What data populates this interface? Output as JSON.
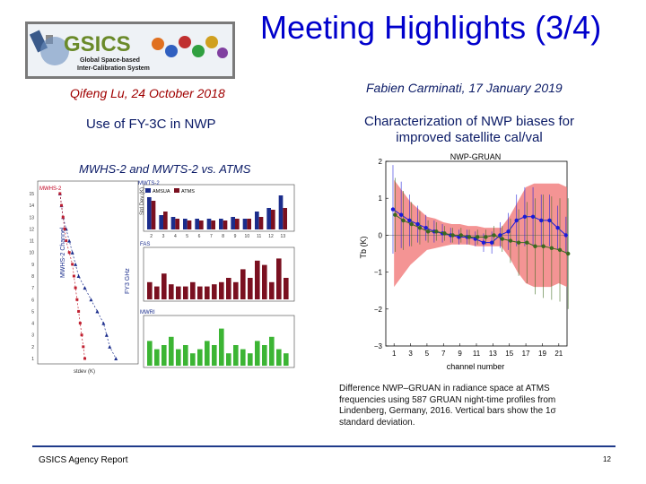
{
  "slide": {
    "title": "Meeting Highlights (3/4)",
    "left": {
      "author": "Qifeng Lu, 24 October 2018",
      "topic": "Use of FY-3C in NWP",
      "subtopic": "MWHS-2 and MWTS-2 vs. ATMS",
      "figure": {
        "top_label": "MWTS-2",
        "legend_items": [
          "AMSUA",
          "ATMS"
        ],
        "mid_label": "FAS",
        "bottom_label": "MWRI",
        "left_axis_label": "MWHS-2 Channel",
        "y_axis_label": "Std Dev (K)",
        "inner_axis_label": "FY3 GHz",
        "x_labels": [
          "2",
          "3",
          "4",
          "5",
          "6",
          "7",
          "8",
          "9",
          "10",
          "11",
          "12",
          "13"
        ],
        "profile_title": "MWHS-2",
        "profile_x_label": "stdev (K)"
      }
    },
    "right": {
      "author": "Fabien Carminati, 17 January 2019",
      "topic_line1": "Characterization of NWP biases for",
      "topic_line2": "improved satellite cal/val",
      "caption_lines": [
        "Difference NWP–GRUAN in radiance space at ATMS",
        "frequencies using 587 GRUAN night-time  profiles from",
        "Lindenberg,  Germany, 2016. Vertical bars show the 1σ",
        "standard deviation."
      ]
    },
    "footer": {
      "left": "GSICS Agency Report",
      "page": "12"
    },
    "logo": {
      "text": "GSICS",
      "subtitle_line1": "Global Space-based",
      "subtitle_line2": "Inter-Calibration System"
    }
  },
  "chart_data": {
    "type": "line",
    "title": "NWP-GRUAN",
    "xlabel": "channel number",
    "ylabel": "Tb (K)",
    "xlim": [
      0,
      22
    ],
    "ylim": [
      -3,
      2
    ],
    "xticks": [
      1,
      3,
      5,
      7,
      9,
      11,
      13,
      15,
      17,
      19,
      21
    ],
    "yticks": [
      -3,
      -2,
      -1,
      0,
      1,
      2
    ],
    "x": [
      1,
      2,
      3,
      4,
      5,
      6,
      7,
      8,
      9,
      10,
      11,
      12,
      13,
      14,
      15,
      16,
      17,
      18,
      19,
      20,
      21,
      22
    ],
    "series": [
      {
        "color": "#1a1adb",
        "values": [
          0.7,
          0.55,
          0.4,
          0.3,
          0.2,
          0.1,
          0.05,
          0.0,
          -0.05,
          -0.05,
          -0.1,
          -0.2,
          -0.2,
          0.0,
          0.1,
          0.4,
          0.5,
          0.5,
          0.4,
          0.4,
          0.2,
          0.0
        ]
      },
      {
        "color": "#3b6a1e",
        "values": [
          0.55,
          0.4,
          0.3,
          0.2,
          0.1,
          0.1,
          0.05,
          0.0,
          0.0,
          -0.05,
          -0.05,
          -0.05,
          0.0,
          -0.1,
          -0.15,
          -0.2,
          -0.2,
          -0.3,
          -0.3,
          -0.35,
          -0.4,
          -0.5
        ]
      }
    ],
    "band": {
      "color": "#f07070",
      "upper": [
        1.5,
        1.2,
        0.9,
        0.7,
        0.5,
        0.45,
        0.35,
        0.3,
        0.3,
        0.25,
        0.25,
        0.2,
        0.2,
        0.2,
        0.5,
        0.9,
        1.3,
        1.4,
        1.4,
        1.4,
        1.4,
        1.3
      ],
      "lower": [
        -1.4,
        -1.1,
        -0.8,
        -0.6,
        -0.4,
        -0.35,
        -0.3,
        -0.25,
        -0.25,
        -0.25,
        -0.3,
        -0.3,
        -0.3,
        -0.3,
        -0.6,
        -1.0,
        -1.3,
        -1.4,
        -1.4,
        -1.4,
        -1.3,
        -1.4
      ]
    },
    "error_bars": {
      "blue": [
        1.2,
        0.9,
        0.7,
        0.5,
        0.35,
        0.3,
        0.25,
        0.2,
        0.2,
        0.2,
        0.2,
        0.25,
        0.3,
        0.35,
        0.5,
        0.7,
        0.8,
        0.8,
        0.7,
        0.7,
        0.6,
        0.5
      ],
      "green": [
        1.0,
        0.8,
        0.6,
        0.45,
        0.3,
        0.25,
        0.2,
        0.2,
        0.2,
        0.2,
        0.2,
        0.2,
        0.25,
        0.35,
        0.6,
        0.9,
        1.1,
        1.3,
        1.4,
        1.4,
        1.4,
        1.5
      ]
    }
  },
  "left_chart_data": {
    "type": "bar",
    "panels": [
      {
        "label": "MWTS-2",
        "categories": [
          "2",
          "3",
          "4",
          "5",
          "6",
          "7",
          "8",
          "9",
          "10",
          "11",
          "12",
          "13"
        ],
        "series": [
          {
            "name": "AMSUA",
            "color": "#1b2d8c",
            "values": [
              0.9,
              0.4,
              0.35,
              0.3,
              0.3,
              0.3,
              0.3,
              0.35,
              0.3,
              0.5,
              0.6,
              0.95
            ]
          },
          {
            "name": "ATMS",
            "color": "#7a1020",
            "values": [
              0.8,
              0.5,
              0.3,
              0.25,
              0.25,
              0.25,
              0.25,
              0.3,
              0.3,
              0.35,
              0.55,
              0.6
            ]
          }
        ]
      },
      {
        "label": "FAS",
        "series": [
          {
            "color": "#7a1020",
            "values": [
              0.4,
              0.3,
              0.6,
              0.35,
              0.3,
              0.3,
              0.4,
              0.3,
              0.3,
              0.35,
              0.4,
              0.5,
              0.4,
              0.7,
              0.5,
              0.9,
              0.8,
              0.4,
              0.95,
              0.5
            ]
          }
        ]
      },
      {
        "label": "MWRI",
        "series": [
          {
            "color": "#3cb534",
            "values": [
              0.6,
              0.4,
              0.5,
              0.7,
              0.4,
              0.5,
              0.3,
              0.4,
              0.6,
              0.5,
              0.9,
              0.3,
              0.5,
              0.4,
              0.3,
              0.6,
              0.5,
              0.7,
              0.4,
              0.3
            ]
          }
        ]
      }
    ],
    "profile": {
      "channels": [
        15,
        14,
        13,
        12,
        11,
        10,
        9,
        8,
        7,
        6,
        5,
        4,
        3,
        2,
        1
      ],
      "blue": [
        1.6,
        1.65,
        1.7,
        1.8,
        1.9,
        2.0,
        2.1,
        2.2,
        2.4,
        2.6,
        2.8,
        3.0,
        3.1,
        3.2,
        3.4
      ],
      "red": [
        1.6,
        1.65,
        1.7,
        1.75,
        1.8,
        1.9,
        2.0,
        2.05,
        2.1,
        2.15,
        2.2,
        2.25,
        2.3,
        2.35,
        2.4
      ]
    }
  }
}
